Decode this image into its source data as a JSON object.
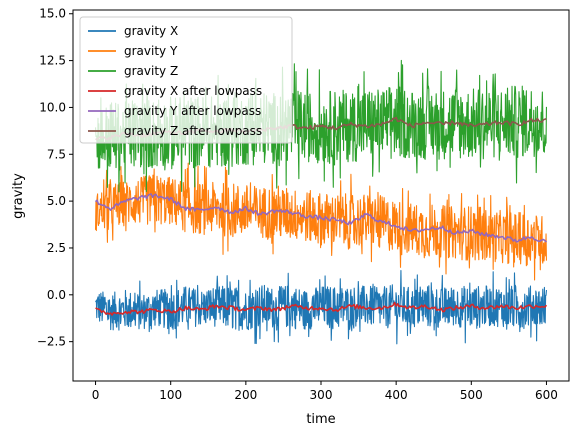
{
  "chart_data": {
    "type": "line",
    "xlabel": "time",
    "ylabel": "gravity",
    "xlim": [
      -30,
      630
    ],
    "ylim": [
      -4.6,
      15.2
    ],
    "xticks": [
      0,
      100,
      200,
      300,
      400,
      500,
      600
    ],
    "xtick_labels": [
      "0",
      "100",
      "200",
      "300",
      "400",
      "500",
      "600"
    ],
    "yticks": [
      -2.5,
      0.0,
      2.5,
      5.0,
      7.5,
      10.0,
      12.5,
      15.0
    ],
    "ytick_labels": [
      "−2.5",
      "0.0",
      "2.5",
      "5.0",
      "7.5",
      "10.0",
      "12.5",
      "15.0"
    ],
    "grid": false,
    "legend_position": "top-left",
    "x": [
      0,
      20,
      40,
      60,
      80,
      100,
      120,
      140,
      160,
      180,
      200,
      220,
      240,
      260,
      280,
      300,
      320,
      340,
      360,
      380,
      400,
      420,
      440,
      460,
      480,
      500,
      520,
      540,
      560,
      580,
      600
    ],
    "series": [
      {
        "name": "gravity X",
        "color": "#1f77b4",
        "noisy": true,
        "values": [
          -0.6,
          -0.9,
          -0.8,
          -0.9,
          -0.7,
          -0.8,
          -0.6,
          -0.7,
          -0.6,
          -0.7,
          -0.8,
          -0.6,
          -0.7,
          -0.6,
          -0.8,
          -0.6,
          -0.7,
          -0.6,
          -0.6,
          -0.7,
          -0.6,
          -0.7,
          -0.6,
          -0.7,
          -0.6,
          -0.7,
          -0.6,
          -0.6,
          -0.7,
          -0.6,
          -0.6
        ],
        "spread": [
          0.9,
          1.0,
          1.1,
          1.0,
          1.0,
          1.1,
          1.1,
          1.0,
          1.1,
          1.2,
          1.1,
          1.2,
          1.1,
          1.2,
          1.1,
          1.1,
          1.2,
          1.1,
          1.1,
          1.1,
          1.2,
          1.1,
          1.2,
          1.1,
          1.1,
          1.2,
          1.1,
          1.1,
          1.2,
          1.1,
          1.1
        ]
      },
      {
        "name": "gravity Y",
        "color": "#ff7f0e",
        "noisy": true,
        "values": [
          4.4,
          4.7,
          4.9,
          5.0,
          5.1,
          5.0,
          4.7,
          4.6,
          4.6,
          4.5,
          4.5,
          4.4,
          4.4,
          4.3,
          4.2,
          4.0,
          4.0,
          3.9,
          4.0,
          3.8,
          3.7,
          3.5,
          3.4,
          3.4,
          3.3,
          3.3,
          3.2,
          3.1,
          3.0,
          3.0,
          2.9
        ],
        "spread": [
          1.0,
          1.3,
          1.2,
          1.3,
          1.4,
          1.3,
          1.4,
          1.4,
          1.4,
          1.5,
          1.4,
          1.4,
          1.5,
          1.4,
          1.4,
          1.5,
          1.4,
          1.5,
          1.4,
          1.5,
          1.4,
          1.4,
          1.5,
          1.4,
          1.4,
          1.5,
          1.4,
          1.4,
          1.4,
          1.4,
          1.3
        ]
      },
      {
        "name": "gravity Z",
        "color": "#2ca02c",
        "noisy": true,
        "values": [
          8.3,
          8.4,
          8.5,
          8.6,
          8.6,
          8.6,
          8.7,
          8.7,
          8.7,
          8.8,
          8.8,
          8.9,
          8.9,
          9.0,
          9.0,
          8.9,
          9.0,
          9.0,
          9.1,
          9.1,
          9.3,
          9.1,
          9.2,
          9.1,
          9.2,
          9.1,
          9.2,
          9.2,
          9.2,
          9.3,
          9.2
        ],
        "spread": [
          1.6,
          1.9,
          1.8,
          1.9,
          1.9,
          2.0,
          1.9,
          2.0,
          1.9,
          2.0,
          1.9,
          2.0,
          1.9,
          2.0,
          1.9,
          1.9,
          2.0,
          1.9,
          2.0,
          1.9,
          2.0,
          1.9,
          2.0,
          1.9,
          2.0,
          1.9,
          2.0,
          1.9,
          2.0,
          1.9,
          1.9
        ]
      },
      {
        "name": "gravity X after lowpass",
        "color": "#d62728",
        "noisy": false,
        "values": [
          -0.8,
          -1.0,
          -0.9,
          -0.9,
          -0.8,
          -0.9,
          -0.7,
          -0.8,
          -0.6,
          -0.7,
          -0.8,
          -0.7,
          -0.8,
          -0.6,
          -0.7,
          -0.7,
          -0.8,
          -0.6,
          -0.7,
          -0.7,
          -0.5,
          -0.7,
          -0.6,
          -0.8,
          -0.7,
          -0.6,
          -0.7,
          -0.6,
          -0.7,
          -0.6,
          -0.6
        ]
      },
      {
        "name": "gravity Y after lowpass",
        "color": "#9467bd",
        "noisy": false,
        "values": [
          5.0,
          4.6,
          5.0,
          5.2,
          5.3,
          5.1,
          4.6,
          4.5,
          4.7,
          4.4,
          4.6,
          4.3,
          4.5,
          4.4,
          4.2,
          4.1,
          4.0,
          3.8,
          4.3,
          3.9,
          3.7,
          3.4,
          3.5,
          3.6,
          3.3,
          3.4,
          3.2,
          3.1,
          2.9,
          3.1,
          2.8
        ]
      },
      {
        "name": "gravity Z after lowpass",
        "color": "#8c564b",
        "noisy": false,
        "values": [
          8.3,
          8.4,
          8.6,
          8.5,
          8.6,
          8.7,
          8.6,
          8.8,
          8.7,
          8.8,
          8.7,
          8.8,
          8.9,
          9.0,
          8.9,
          9.0,
          8.9,
          9.1,
          9.0,
          9.1,
          9.4,
          9.0,
          9.2,
          9.1,
          9.2,
          9.0,
          9.1,
          9.2,
          9.1,
          9.3,
          9.3
        ]
      }
    ]
  }
}
